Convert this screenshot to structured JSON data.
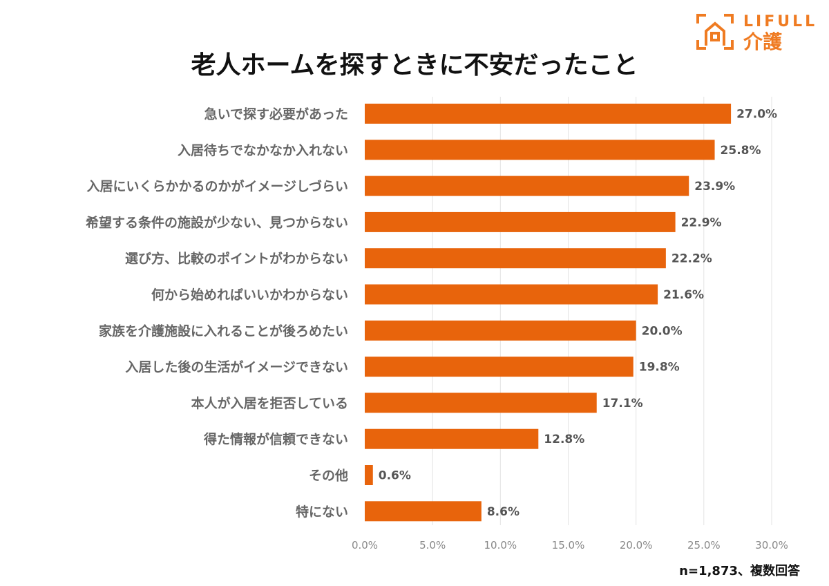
{
  "brand": {
    "name": "LIFULL",
    "sub": "介護",
    "color": "#EF7B22"
  },
  "chart_data": {
    "type": "bar",
    "orientation": "horizontal",
    "title": "老人ホームを探すときに不安だったこと",
    "categories": [
      "急いで探す必要があった",
      "入居待ちでなかなか入れない",
      "入居にいくらかかるのかがイメージしづらい",
      "希望する条件の施設が少ない、見つからない",
      "選び方、比較のポイントがわからない",
      "何から始めればいいかわからない",
      "家族を介護施設に入れることが後ろめたい",
      "入居した後の生活がイメージできない",
      "本人が入居を拒否している",
      "得た情報が信頼できない",
      "その他",
      "特にない"
    ],
    "values": [
      27.0,
      25.8,
      23.9,
      22.9,
      22.2,
      21.6,
      20.0,
      19.8,
      17.1,
      12.8,
      0.6,
      8.6
    ],
    "value_labels": [
      "27.0%",
      "25.8%",
      "23.9%",
      "22.9%",
      "22.2%",
      "21.6%",
      "20.0%",
      "19.8%",
      "17.1%",
      "12.8%",
      "0.6%",
      "8.6%"
    ],
    "xlim": [
      0,
      30
    ],
    "ticks": [
      "0.0%",
      "5.0%",
      "10.0%",
      "15.0%",
      "20.0%",
      "25.0%",
      "30.0%"
    ],
    "grid": true,
    "bar_color": "#E8640C",
    "note": "n=1,873、複数回答"
  }
}
